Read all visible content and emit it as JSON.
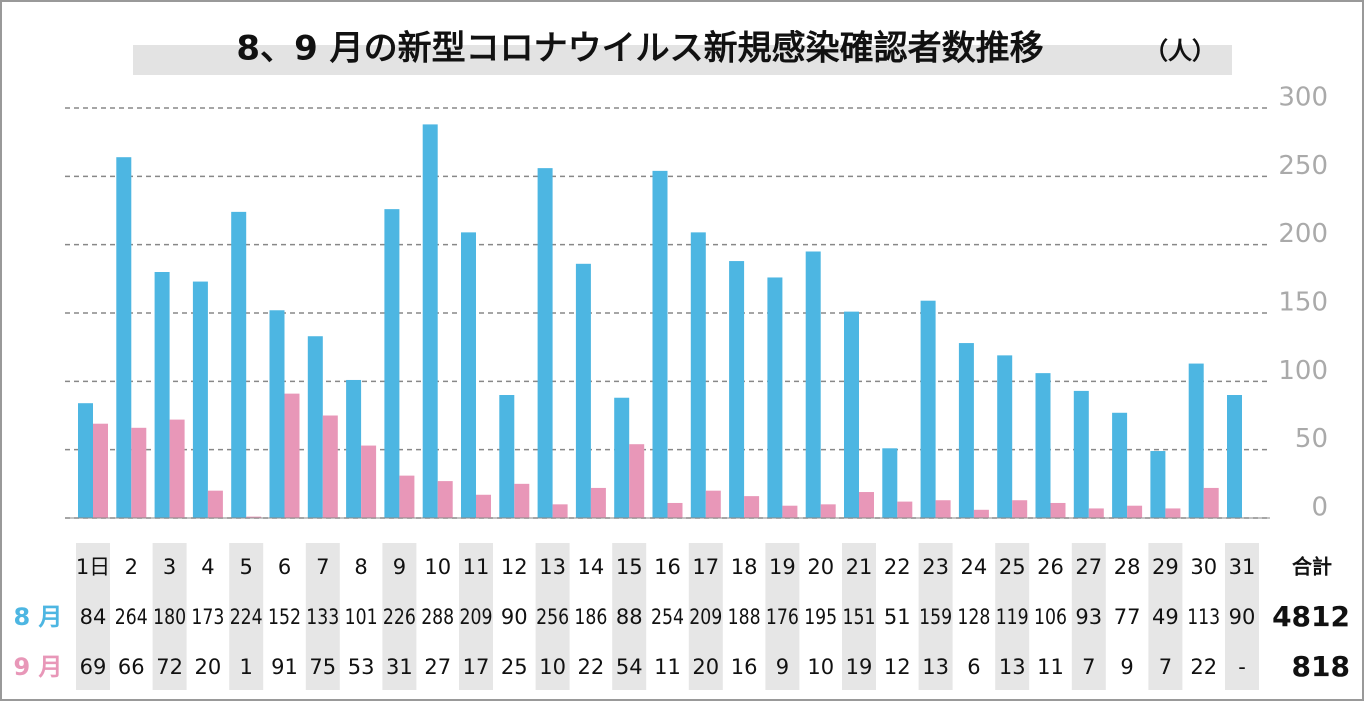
{
  "chart_data": {
    "type": "bar",
    "title": "8、9 月の新型コロナウイルス新規感染確認者数推移",
    "unit": "（人）",
    "categories": [
      "1日",
      "2",
      "3",
      "4",
      "5",
      "6",
      "7",
      "8",
      "9",
      "10",
      "11",
      "12",
      "13",
      "14",
      "15",
      "16",
      "17",
      "18",
      "19",
      "20",
      "21",
      "22",
      "23",
      "24",
      "25",
      "26",
      "27",
      "28",
      "29",
      "30",
      "31"
    ],
    "total_label": "合計",
    "series": [
      {
        "name": "8 月",
        "color": "#4db6e2",
        "values": [
          84,
          264,
          180,
          173,
          224,
          152,
          133,
          101,
          226,
          288,
          209,
          90,
          256,
          186,
          88,
          254,
          209,
          188,
          176,
          195,
          151,
          51,
          159,
          128,
          119,
          106,
          93,
          77,
          49,
          113,
          90
        ],
        "total": 4812
      },
      {
        "name": "9 月",
        "color": "#e897b8",
        "values": [
          69,
          66,
          72,
          20,
          1,
          91,
          75,
          53,
          31,
          27,
          17,
          25,
          10,
          22,
          54,
          11,
          20,
          16,
          9,
          10,
          19,
          12,
          13,
          6,
          13,
          11,
          7,
          9,
          7,
          22,
          null
        ],
        "value_labels": [
          "69",
          "66",
          "72",
          "20",
          "1",
          "91",
          "75",
          "53",
          "31",
          "27",
          "17",
          "25",
          "10",
          "22",
          "54",
          "11",
          "20",
          "16",
          "9",
          "10",
          "19",
          "12",
          "13",
          "6",
          "13",
          "11",
          "7",
          "9",
          "7",
          "22",
          "-"
        ],
        "total": 818
      }
    ],
    "ylim": [
      0,
      300
    ],
    "yticks": [
      0,
      50,
      100,
      150,
      200,
      250,
      300
    ],
    "grid": true
  }
}
